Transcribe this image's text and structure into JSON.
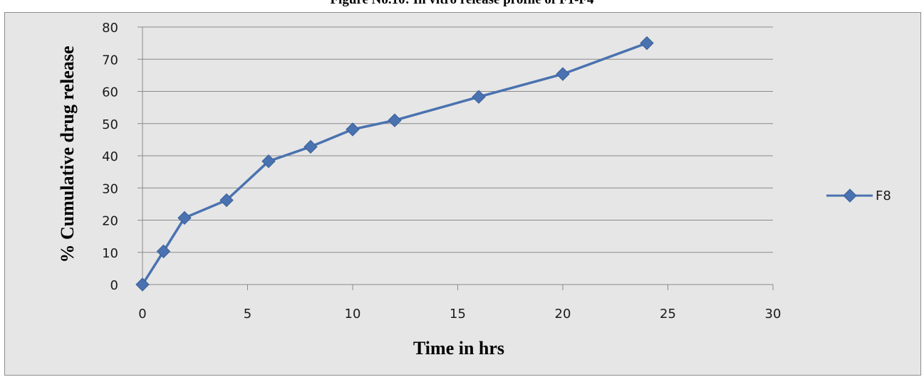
{
  "figure": {
    "caption": "Figure No.10: In vitro release profile of F1-F4"
  },
  "chart_data": {
    "type": "line",
    "title": "",
    "xlabel": "Time in hrs",
    "ylabel": "% Cumulative drug release",
    "xlim": [
      0,
      30
    ],
    "ylim": [
      0,
      80
    ],
    "x_ticks": [
      0,
      5,
      10,
      15,
      20,
      25,
      30
    ],
    "y_ticks": [
      0,
      10,
      20,
      30,
      40,
      50,
      60,
      70,
      80
    ],
    "grid": "horizontal",
    "legend_position": "right",
    "series": [
      {
        "name": "F8",
        "color": "#4a72b0",
        "marker": "diamond",
        "x": [
          0,
          1,
          2,
          4,
          6,
          8,
          10,
          12,
          16,
          20,
          24
        ],
        "y": [
          0,
          10.3,
          20.7,
          26.2,
          38.3,
          42.8,
          48.2,
          51.0,
          58.3,
          65.4,
          75.0
        ]
      }
    ]
  }
}
